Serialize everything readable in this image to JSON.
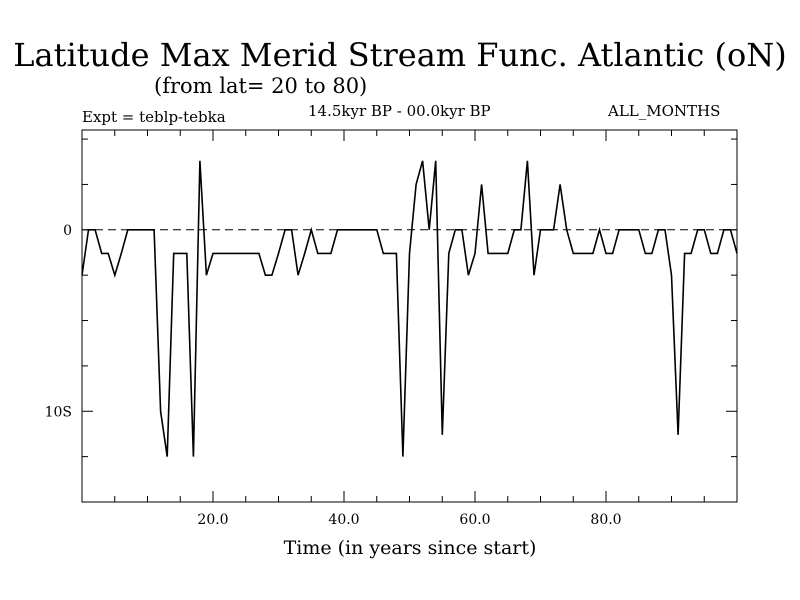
{
  "header": {
    "title": "Latitude Max Merid Stream Func. Atlantic (oN)",
    "subtitle": "(from lat= 20 to 80)",
    "experiment": "Expt = teblp-tebka",
    "period": "14.5kyr BP - 00.0kyr BP",
    "months": "ALL_MONTHS"
  },
  "chart_data": {
    "type": "line",
    "title": "Latitude Max Merid Stream Func. Atlantic (oN)",
    "xlabel": "Time (in years since start)",
    "ylabel": "",
    "xlim": [
      0,
      100
    ],
    "ylim": [
      -15,
      5.5
    ],
    "x_ticks": [
      {
        "value": 20,
        "label": "20.0"
      },
      {
        "value": 40,
        "label": "40.0"
      },
      {
        "value": 60,
        "label": "60.0"
      },
      {
        "value": 80,
        "label": "80.0"
      }
    ],
    "y_ticks": [
      {
        "value": 0,
        "label": "0"
      },
      {
        "value": -10,
        "label": "10S"
      }
    ],
    "reference_line": {
      "y": 0,
      "style": "dashed"
    },
    "series": [
      {
        "color": "#000000",
        "x": [
          0,
          1,
          2,
          3,
          4,
          5,
          6,
          7,
          8,
          9,
          10,
          11,
          12,
          13,
          14,
          15,
          16,
          17,
          18,
          19,
          20,
          21,
          22,
          23,
          24,
          25,
          26,
          27,
          28,
          29,
          30,
          31,
          32,
          33,
          34,
          35,
          36,
          37,
          38,
          39,
          40,
          41,
          42,
          43,
          44,
          45,
          46,
          47,
          48,
          49,
          50,
          51,
          52,
          53,
          54,
          55,
          56,
          57,
          58,
          59,
          60,
          61,
          62,
          63,
          64,
          65,
          66,
          67,
          68,
          69,
          70,
          71,
          72,
          73,
          74,
          75,
          76,
          77,
          78,
          79,
          80,
          81,
          82,
          83,
          84,
          85,
          86,
          87,
          88,
          89,
          90,
          91,
          92,
          93,
          94,
          95,
          96,
          97,
          98,
          99,
          100
        ],
        "y": [
          -2.5,
          0,
          0,
          -1.3,
          -1.3,
          -2.5,
          -1.3,
          0,
          0,
          0,
          0,
          0,
          -10,
          -12.5,
          -1.3,
          -1.3,
          -1.3,
          -12.5,
          3.8,
          -2.5,
          -1.3,
          -1.3,
          -1.3,
          -1.3,
          -1.3,
          -1.3,
          -1.3,
          -1.3,
          -2.5,
          -2.5,
          -1.3,
          0,
          0,
          -2.5,
          -1.3,
          0,
          -1.3,
          -1.3,
          -1.3,
          0,
          0,
          0,
          0,
          0,
          0,
          0,
          -1.3,
          -1.3,
          -1.3,
          -12.5,
          -1.3,
          2.5,
          3.8,
          0,
          3.8,
          -11.3,
          -1.3,
          0,
          0,
          -2.5,
          -1.3,
          2.5,
          -1.3,
          -1.3,
          -1.3,
          -1.3,
          0,
          0,
          3.8,
          -2.5,
          0,
          0,
          0,
          2.5,
          0,
          -1.3,
          -1.3,
          -1.3,
          -1.3,
          0,
          -1.3,
          -1.3,
          0,
          0,
          0,
          0,
          -1.3,
          -1.3,
          0,
          0,
          -2.5,
          -11.3,
          -1.3,
          -1.3,
          0,
          0,
          -1.3,
          -1.3,
          0,
          0,
          -1.3
        ]
      }
    ]
  }
}
